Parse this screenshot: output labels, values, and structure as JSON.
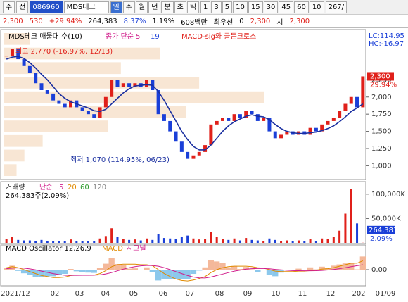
{
  "toolbar": {
    "market": "주",
    "prev": "전",
    "code": "086960",
    "name": "MDS테크",
    "periods": [
      "일",
      "주",
      "월",
      "년",
      "분",
      "초",
      "틱"
    ],
    "intervals": [
      "1",
      "3",
      "5",
      "10",
      "15",
      "30",
      "45",
      "60",
      "10"
    ],
    "count": "267/"
  },
  "quote": {
    "price": "2,300",
    "change": "530",
    "rate": "+29.94%",
    "volume": "264,383",
    "turnover": "8.37%",
    "ratio": "1.19%",
    "amount": "608백만",
    "best_label": "최우선",
    "best_qty": "0",
    "best_price": "2,300",
    "open_label": "시",
    "open": "2,300"
  },
  "chart_data": {
    "type": "candlestick",
    "legend": {
      "name": "MDS테크 매물대 수(10)",
      "ma_label": "종가 단순 5",
      "ma_period": "19",
      "signal": "MACD-sig와 골든크로스",
      "lc": "LC:114.95",
      "hc": "HC:-16.97"
    },
    "high_label": "최고 2,770 (-16.97%, 12/13)",
    "low_label": "최저 1,070 (114.95%, 06/23)",
    "last_price": {
      "value": 2300,
      "label": "2,300"
    },
    "last_rate": "29.94%",
    "ylim": [
      830,
      2950
    ],
    "yticks": [
      {
        "value": 1000,
        "label": "1,000"
      },
      {
        "value": 1250,
        "label": "1,250"
      },
      {
        "value": 1500,
        "label": "1,500"
      },
      {
        "value": 1750,
        "label": "1,750"
      },
      {
        "value": 2000,
        "label": "2,000"
      },
      {
        "value": 2250,
        "label": "2,250"
      }
    ],
    "x_labels": [
      "2021/12",
      "02",
      "03",
      "04",
      "05",
      "06",
      "07",
      "08",
      "09",
      "10",
      "11",
      "12",
      "202",
      "01/09"
    ],
    "close": [
      2600,
      2700,
      2550,
      2450,
      2350,
      2200,
      2100,
      2050,
      1950,
      1900,
      1850,
      1950,
      1850,
      1800,
      1750,
      1700,
      1850,
      2000,
      2250,
      2150,
      2200,
      2150,
      2200,
      2150,
      2250,
      2100,
      1750,
      1650,
      1500,
      1350,
      1200,
      1100,
      1150,
      1200,
      1300,
      1600,
      1650,
      1700,
      1650,
      1750,
      1700,
      1800,
      1750,
      1650,
      1700,
      1500,
      1400,
      1450,
      1500,
      1450,
      1500,
      1450,
      1550,
      1500,
      1600,
      1650,
      1700,
      1800,
      1900,
      2000,
      1850,
      2300
    ],
    "ma": [
      2550,
      2580,
      2590,
      2560,
      2500,
      2420,
      2330,
      2250,
      2150,
      2050,
      1980,
      1930,
      1900,
      1870,
      1840,
      1800,
      1790,
      1820,
      1900,
      1980,
      2060,
      2120,
      2160,
      2170,
      2180,
      2170,
      2080,
      1950,
      1800,
      1650,
      1500,
      1380,
      1280,
      1230,
      1230,
      1300,
      1400,
      1500,
      1580,
      1640,
      1680,
      1720,
      1740,
      1720,
      1710,
      1670,
      1600,
      1540,
      1500,
      1480,
      1470,
      1470,
      1480,
      1490,
      1510,
      1540,
      1580,
      1640,
      1710,
      1790,
      1840,
      1900
    ],
    "volume_profile": [
      5,
      8,
      15,
      40,
      70,
      100,
      75,
      45,
      60,
      10
    ],
    "volume_legend": {
      "name": "거래량",
      "ma": "단순",
      "p5": "5",
      "p20": "20",
      "p60": "60",
      "p120": "120",
      "current": "264,383주(2.09%)"
    },
    "volume": [
      8000,
      12000,
      6000,
      5000,
      5000,
      4000,
      6000,
      4000,
      3000,
      3000,
      4000,
      7000,
      3000,
      3000,
      4000,
      3000,
      9000,
      14000,
      30000,
      12000,
      8000,
      6000,
      7000,
      5000,
      9000,
      6000,
      18000,
      10000,
      9000,
      8000,
      12000,
      15000,
      9000,
      7000,
      8000,
      22000,
      12000,
      8000,
      6000,
      9000,
      5000,
      10000,
      6000,
      5000,
      4000,
      9000,
      6000,
      4000,
      5000,
      4000,
      5000,
      4000,
      8000,
      4000,
      9000,
      8000,
      12000,
      25000,
      60000,
      110000,
      40000,
      264
    ],
    "volume_ylim": [
      0,
      120000
    ],
    "volume_yticks": [
      {
        "value": 50000,
        "label": "50,000K"
      },
      {
        "value": 100000,
        "label": "100,000K"
      }
    ],
    "volume_last_label": "264,383",
    "volume_last_rate": "2.09%",
    "macd_legend": {
      "name": "MACD Oscillator 12,26,9",
      "macd": "MACD",
      "signal": "시그널"
    },
    "macd_ylim": [
      -150,
      150
    ],
    "macd_yticks": [
      {
        "value": 0,
        "label": "0.00"
      }
    ],
    "oscillator": [
      17,
      40,
      -13,
      -37,
      -50,
      -73,
      -77,
      -67,
      -67,
      -50,
      -43,
      7,
      -17,
      -23,
      -30,
      -33,
      20,
      60,
      117,
      57,
      47,
      10,
      13,
      -7,
      23,
      -23,
      -110,
      -100,
      -100,
      -100,
      -100,
      -93,
      -43,
      -10,
      23,
      100,
      83,
      67,
      23,
      37,
      7,
      27,
      3,
      -23,
      -3,
      -57,
      -67,
      -30,
      0,
      -10,
      10,
      -7,
      23,
      3,
      30,
      20,
      40,
      53,
      63,
      70,
      3,
      133
    ],
    "macd": [
      20,
      30,
      20,
      0,
      -20,
      -40,
      -60,
      -70,
      -80,
      -80,
      -75,
      -60,
      -55,
      -55,
      -55,
      -55,
      -40,
      -10,
      30,
      50,
      55,
      55,
      55,
      50,
      50,
      40,
      0,
      -40,
      -70,
      -95,
      -110,
      -115,
      -105,
      -90,
      -70,
      -30,
      0,
      20,
      30,
      35,
      35,
      35,
      30,
      20,
      15,
      0,
      -15,
      -20,
      -20,
      -20,
      -15,
      -15,
      -10,
      -5,
      5,
      10,
      20,
      35,
      50,
      65,
      65,
      90
    ],
    "signal_line": [
      10,
      15,
      18,
      15,
      8,
      -2,
      -15,
      -28,
      -40,
      -50,
      -57,
      -58,
      -58,
      -57,
      -57,
      -56,
      -53,
      -44,
      -30,
      -12,
      5,
      20,
      30,
      38,
      42,
      42,
      35,
      20,
      0,
      -20,
      -40,
      -60,
      -75,
      -84,
      -85,
      -75,
      -60,
      -45,
      -30,
      -15,
      -5,
      5,
      10,
      12,
      12,
      9,
      3,
      -2,
      -6,
      -10,
      -11,
      -12,
      -12,
      -11,
      -8,
      -4,
      2,
      10,
      20,
      30,
      40,
      50
    ]
  }
}
